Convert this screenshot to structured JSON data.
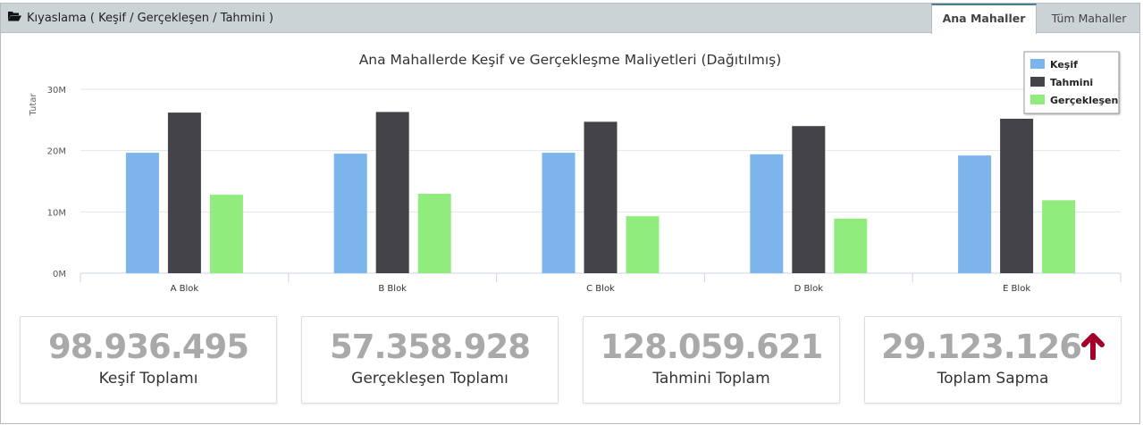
{
  "header": {
    "title": "Kıyaslama ( Keşif / Gerçekleşen / Tahmini )",
    "icon": "folder-open-icon",
    "tabs": [
      {
        "label": "Ana Mahaller",
        "active": true
      },
      {
        "label": "Tüm Mahaller",
        "active": false
      }
    ]
  },
  "chart_data": {
    "type": "bar",
    "title": "Ana Mahallerde Keşif ve Gerçekleşme Maliyetleri (Dağıtılmış)",
    "ylabel": "Tutar",
    "xlabel": "",
    "ylim": [
      0,
      30000000
    ],
    "yticks": [
      "0M",
      "10M",
      "20M",
      "30M"
    ],
    "categories": [
      "A Blok",
      "B Blok",
      "C Blok",
      "D Blok",
      "E Blok"
    ],
    "legend_position": "top-right",
    "grid": true,
    "series": [
      {
        "name": "Keşif",
        "color": "#7cb5ec",
        "values": [
          19650000,
          19500000,
          19650000,
          19400000,
          19200000
        ]
      },
      {
        "name": "Tahmini",
        "color": "#434348",
        "values": [
          26200000,
          26300000,
          24700000,
          24000000,
          25200000
        ]
      },
      {
        "name": "Gerçekleşen",
        "color": "#90ed7d",
        "values": [
          12800000,
          12950000,
          9300000,
          8900000,
          11900000
        ]
      }
    ]
  },
  "cards": [
    {
      "value": "98.936.495",
      "label": "Keşif Toplamı"
    },
    {
      "value": "57.358.928",
      "label": "Gerçekleşen Toplamı"
    },
    {
      "value": "128.059.621",
      "label": "Tahmini Toplam"
    },
    {
      "value": "29.123.126",
      "label": "Toplam Sapma",
      "icon": "arrow-up-icon",
      "icon_color": "#a3002a"
    }
  ]
}
